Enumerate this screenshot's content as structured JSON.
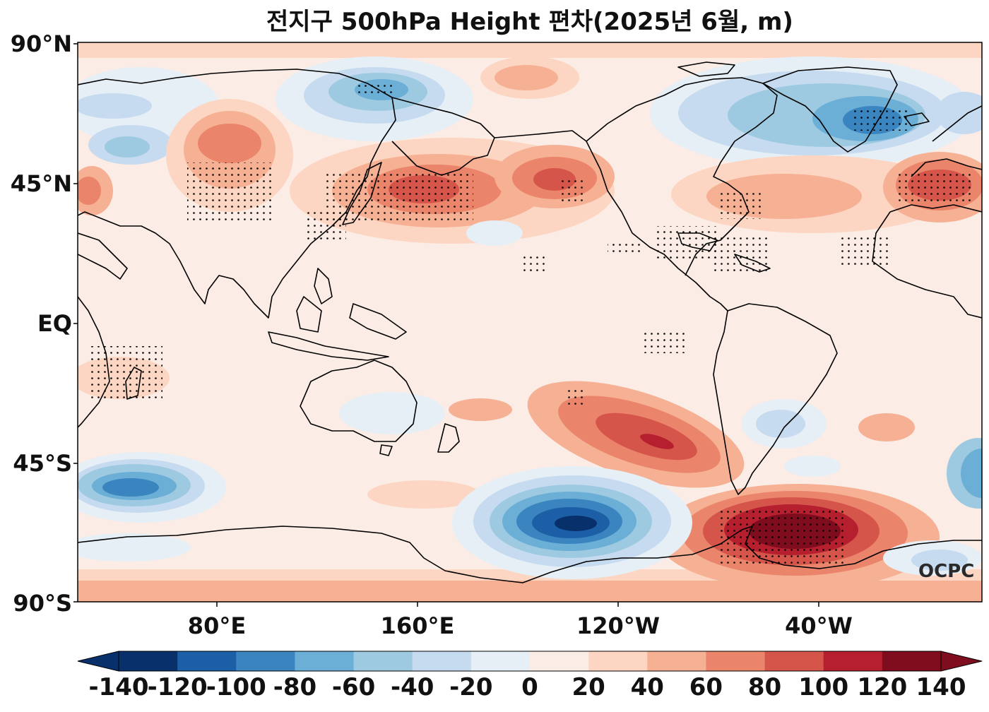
{
  "map": {
    "title": "전지구 500hPa Height 편차(2025년 6월, m)",
    "watermark": "OCPC",
    "lat_labels": [
      "90°N",
      "45°N",
      "EQ",
      "45°S",
      "90°S"
    ],
    "lon_labels": [
      "80°E",
      "160°E",
      "120°W",
      "40°W"
    ],
    "colorbar": {
      "ticks": [
        "-140",
        "-120",
        "-100",
        "-80",
        "-60",
        "-40",
        "-20",
        "0",
        "20",
        "40",
        "60",
        "80",
        "100",
        "120",
        "140"
      ],
      "colors": [
        "#08306b",
        "#1d5fa6",
        "#3a84c0",
        "#6baed6",
        "#9ecae1",
        "#c6dbef",
        "#e6eff6",
        "#fbece5",
        "#fcd6c2",
        "#f6b093",
        "#ea846a",
        "#d6554b",
        "#b51f2e",
        "#7f0d1e"
      ],
      "extend": "both"
    },
    "features": {
      "anomaly_field": "500hPa geopotential height anomaly",
      "stippling": "statistically significant areas",
      "coastlines": true
    }
  }
}
